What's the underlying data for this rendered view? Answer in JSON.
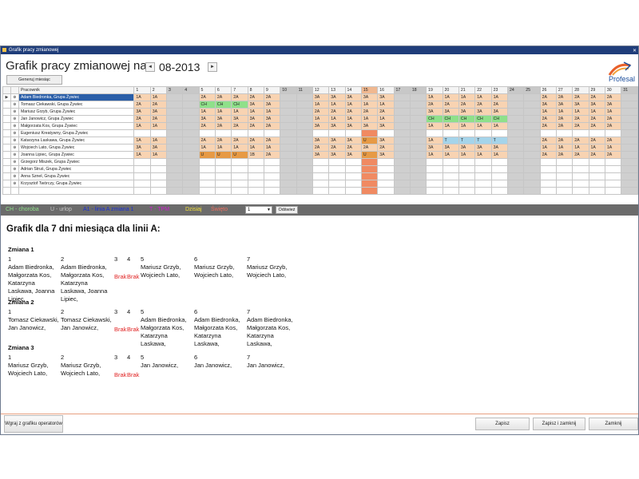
{
  "window": {
    "title": "Grafik pracy zmianowej"
  },
  "header": {
    "title": "Grafik pracy zmianowej na",
    "month": "08-2013",
    "prev_icon": "arrow-left",
    "next_icon": "arrow-right",
    "generate_label": "Generuj miesiąc",
    "logo_text": "Profesal"
  },
  "grid": {
    "employee_col_label": "Pracownik",
    "days": [
      "1",
      "2",
      "3",
      "4",
      "5",
      "6",
      "7",
      "8",
      "9",
      "10",
      "11",
      "12",
      "13",
      "14",
      "15",
      "16",
      "17",
      "18",
      "19",
      "20",
      "21",
      "22",
      "23",
      "24",
      "25",
      "26",
      "27",
      "28",
      "29",
      "30",
      "31"
    ],
    "weekend_days": [
      3,
      4,
      10,
      11,
      17,
      18,
      24,
      25,
      31
    ],
    "today_day": 15,
    "rows": [
      {
        "name": "Adam Biedronka, Grupa Żywiec",
        "selected": true,
        "cells": [
          "1A",
          "1A",
          "",
          "",
          "2A",
          "2A",
          "2A",
          "2A",
          "2A",
          "",
          "",
          "3A",
          "3A",
          "3A",
          "3A",
          "3A",
          "",
          "",
          "1A",
          "1A",
          "1A",
          "1A",
          "1A",
          "",
          "",
          "2A",
          "2A",
          "2A",
          "2A",
          "2A",
          ""
        ]
      },
      {
        "name": "Tomasz Ciekawski, Grupa Żywiec",
        "cells": [
          "2A",
          "2A",
          "",
          "",
          "CH",
          "CH",
          "CH",
          "3A",
          "3A",
          "",
          "",
          "1A",
          "1A",
          "1A",
          "1A",
          "1A",
          "",
          "",
          "2A",
          "2A",
          "2A",
          "2A",
          "2A",
          "",
          "",
          "3A",
          "3A",
          "3A",
          "3A",
          "3A",
          ""
        ]
      },
      {
        "name": "Mariusz Grzyb, Grupa Żywiec",
        "cells": [
          "3A",
          "3A",
          "",
          "",
          "1A",
          "1A",
          "1A",
          "1A",
          "1A",
          "",
          "",
          "2A",
          "2A",
          "2A",
          "2A",
          "2A",
          "",
          "",
          "3A",
          "3A",
          "3A",
          "3A",
          "3A",
          "",
          "",
          "1A",
          "1A",
          "1A",
          "1A",
          "1A",
          ""
        ]
      },
      {
        "name": "Jan Janowicz, Grupa Żywiec",
        "cells": [
          "2A",
          "2A",
          "",
          "",
          "3A",
          "3A",
          "3A",
          "3A",
          "3A",
          "",
          "",
          "1A",
          "1A",
          "1A",
          "1A",
          "1A",
          "",
          "",
          "CH",
          "CH",
          "CH",
          "CH",
          "CH",
          "",
          "",
          "2A",
          "2A",
          "2A",
          "2A",
          "2A",
          ""
        ]
      },
      {
        "name": "Małgorzata Kos, Grupa Żywiec",
        "cells": [
          "1A",
          "1A",
          "",
          "",
          "2A",
          "2A",
          "2A",
          "2A",
          "2A",
          "",
          "",
          "3A",
          "3A",
          "3A",
          "3A",
          "3A",
          "",
          "",
          "1A",
          "1A",
          "1A",
          "1A",
          "1A",
          "",
          "",
          "2A",
          "2A",
          "2A",
          "2A",
          "2A",
          ""
        ]
      },
      {
        "name": "Eugeniusz Kreatywny, Grupa Żywiec",
        "cells": [
          "",
          "",
          "",
          "",
          "",
          "",
          "",
          "",
          "",
          "",
          "",
          "",
          "",
          "",
          "",
          "",
          "",
          "",
          "",
          "",
          "",
          "",
          "",
          "",
          "",
          "",
          "",
          "",
          "",
          "",
          ""
        ]
      },
      {
        "name": "Katarzyna Laskawa, Grupa Żywiec",
        "cells": [
          "1A",
          "1A",
          "",
          "",
          "2A",
          "2A",
          "2A",
          "2A",
          "2A",
          "",
          "",
          "3A",
          "3A",
          "3A",
          "U",
          "3A",
          "",
          "",
          "1A",
          "T",
          "T",
          "T",
          "T",
          "",
          "",
          "2A",
          "2A",
          "2A",
          "2A",
          "2A",
          ""
        ]
      },
      {
        "name": "Wojciech Lato, Grupa Żywiec",
        "cells": [
          "3A",
          "3A",
          "",
          "",
          "1A",
          "1A",
          "1A",
          "1A",
          "1A",
          "",
          "",
          "2A",
          "2A",
          "2A",
          "2A",
          "2A",
          "",
          "",
          "3A",
          "3A",
          "3A",
          "3A",
          "3A",
          "",
          "",
          "1A",
          "1A",
          "1A",
          "1A",
          "1A",
          ""
        ]
      },
      {
        "name": "Joanna Lipiec, Grupa Żywiec",
        "cells": [
          "1A",
          "1A",
          "",
          "",
          "U",
          "U",
          "U",
          "1B",
          "2A",
          "",
          "",
          "3A",
          "3A",
          "3A",
          "U",
          "3A",
          "",
          "",
          "1A",
          "1A",
          "1A",
          "1A",
          "1A",
          "",
          "",
          "2A",
          "2A",
          "2A",
          "2A",
          "2A",
          ""
        ]
      },
      {
        "name": "Grzegorz Miszek, Grupa Żywiec",
        "cells": [
          "",
          "",
          "",
          "",
          "",
          "",
          "",
          "",
          "",
          "",
          "",
          "",
          "",
          "",
          "",
          "",
          "",
          "",
          "",
          "",
          "",
          "",
          "",
          "",
          "",
          "",
          "",
          "",
          "",
          "",
          ""
        ]
      },
      {
        "name": "Adrian Struś, Grupa Żywiec",
        "cells": [
          "",
          "",
          "",
          "",
          "",
          "",
          "",
          "",
          "",
          "",
          "",
          "",
          "",
          "",
          "",
          "",
          "",
          "",
          "",
          "",
          "",
          "",
          "",
          "",
          "",
          "",
          "",
          "",
          "",
          "",
          ""
        ]
      },
      {
        "name": "Anna Szneł, Grupa Żywiec",
        "cells": [
          "",
          "",
          "",
          "",
          "",
          "",
          "",
          "",
          "",
          "",
          "",
          "",
          "",
          "",
          "",
          "",
          "",
          "",
          "",
          "",
          "",
          "",
          "",
          "",
          "",
          "",
          "",
          "",
          "",
          "",
          ""
        ]
      },
      {
        "name": "Krzysztof Twórczy, Grupa Żywiec",
        "cells": [
          "",
          "",
          "",
          "",
          "",
          "",
          "",
          "",
          "",
          "",
          "",
          "",
          "",
          "",
          "",
          "",
          "",
          "",
          "",
          "",
          "",
          "",
          "",
          "",
          "",
          "",
          "",
          "",
          "",
          "",
          ""
        ]
      },
      {
        "name": "",
        "cells": [
          "",
          "",
          "",
          "",
          "",
          "",
          "",
          "",
          "",
          "",
          "",
          "",
          "",
          "",
          "",
          "",
          "",
          "",
          "",
          "",
          "",
          "",
          "",
          "",
          "",
          "",
          "",
          "",
          "",
          "",
          ""
        ]
      }
    ]
  },
  "legend": {
    "items": [
      {
        "text": "CH - choroba",
        "color": "#8fe08a"
      },
      {
        "text": "U - urlop",
        "color": "#c9c9c9"
      },
      {
        "text": "A1 - linia A zmiana 1",
        "color": "#1a2fd4"
      },
      {
        "text": "T - TPM",
        "color": "#d020d0"
      },
      {
        "text": "Dzisiaj",
        "color": "#f2e03a"
      },
      {
        "text": "Święto",
        "color": "#f07060"
      }
    ],
    "select_value": "1",
    "refresh_label": "Odśwież"
  },
  "report": {
    "title": "Grafik dla 7 dni miesiąca dla linii A:",
    "shifts": [
      {
        "label": "Zmiana 1",
        "days": [
          {
            "num": "1",
            "text": "Adam Biedronka, Małgorzata Kos, Katarzyna Laskawa, Joanna Lipiec,"
          },
          {
            "num": "2",
            "text": "Adam Biedronka, Małgorzata Kos, Katarzyna Laskawa, Joanna Lipiec,"
          },
          {
            "num": "3",
            "text": "Brak",
            "brak": true
          },
          {
            "num": "4",
            "text": "Brak",
            "brak": true
          },
          {
            "num": "5",
            "text": "Mariusz Grzyb, Wojciech Lato,"
          },
          {
            "num": "6",
            "text": "Mariusz Grzyb, Wojciech Lato,"
          },
          {
            "num": "7",
            "text": "Mariusz Grzyb, Wojciech Lato,"
          }
        ]
      },
      {
        "label": "Zmiana 2",
        "days": [
          {
            "num": "1",
            "text": "Tomasz Ciekawski, Jan Janowicz,"
          },
          {
            "num": "2",
            "text": "Tomasz Ciekawski, Jan Janowicz,"
          },
          {
            "num": "3",
            "text": "Brak",
            "brak": true
          },
          {
            "num": "4",
            "text": "Brak",
            "brak": true
          },
          {
            "num": "5",
            "text": "Adam Biedronka, Małgorzata Kos, Katarzyna Laskawa,"
          },
          {
            "num": "6",
            "text": "Adam Biedronka, Małgorzata Kos, Katarzyna Laskawa,"
          },
          {
            "num": "7",
            "text": "Adam Biedronka, Małgorzata Kos, Katarzyna Laskawa,"
          }
        ]
      },
      {
        "label": "Zmiana 3",
        "days": [
          {
            "num": "1",
            "text": "Mariusz Grzyb, Wojciech Lato,"
          },
          {
            "num": "2",
            "text": "Mariusz Grzyb, Wojciech Lato,"
          },
          {
            "num": "3",
            "text": "Brak",
            "brak": true
          },
          {
            "num": "4",
            "text": "Brak",
            "brak": true
          },
          {
            "num": "5",
            "text": "Jan Janowicz,"
          },
          {
            "num": "6",
            "text": "Jan Janowicz,"
          },
          {
            "num": "7",
            "text": "Jan Janowicz,"
          }
        ]
      }
    ]
  },
  "footer": {
    "import_label": "Wgraj z grafiku operatorów",
    "save_label": "Zapisz",
    "save_close_label": "Zapisz i zamknij",
    "close_label": "Zamknij"
  }
}
